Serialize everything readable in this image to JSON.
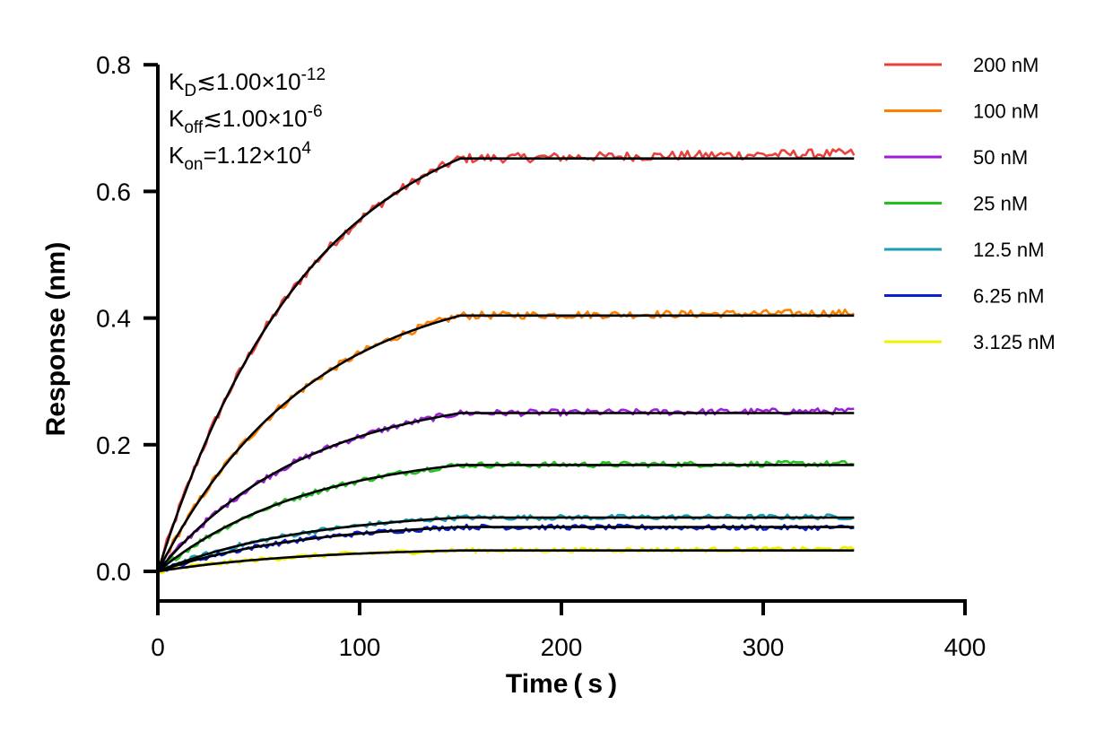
{
  "chart_data": {
    "type": "line",
    "xlabel": "Time ( s )",
    "ylabel": "Response (nm)",
    "xlim": [
      0,
      400
    ],
    "ylim": [
      -0.05,
      0.8
    ],
    "x_ticks": [
      "0",
      "100",
      "200",
      "300",
      "400"
    ],
    "y_ticks": [
      "0.0",
      "0.2",
      "0.4",
      "0.6",
      "0.8"
    ],
    "grid": false,
    "legend_position": "top-right",
    "association_end_time": 150,
    "end_time": 345,
    "annotations": [
      {
        "main": "K",
        "sub": "D",
        "rest": "≲1.00×10",
        "sup": "-12"
      },
      {
        "main": "K",
        "sub": "off",
        "rest": "≲1.00×10",
        "sup": "-6"
      },
      {
        "main": "K",
        "sub": "on",
        "rest": "=1.12×10",
        "sup": "4"
      }
    ],
    "series": [
      {
        "name": "200 nM",
        "color": "#e8423c",
        "plateau": 0.652,
        "final": 0.66
      },
      {
        "name": "100 nM",
        "color": "#ff8000",
        "plateau": 0.404,
        "final": 0.408
      },
      {
        "name": "50 nM",
        "color": "#9b1fd6",
        "plateau": 0.25,
        "final": 0.253
      },
      {
        "name": "25 nM",
        "color": "#22c21c",
        "plateau": 0.168,
        "final": 0.17
      },
      {
        "name": "12.5 nM",
        "color": "#1a9fb0",
        "plateau": 0.085,
        "final": 0.086
      },
      {
        "name": "6.25 nM",
        "color": "#0a1fcf",
        "plateau": 0.07,
        "final": 0.069
      },
      {
        "name": "3.125 nM",
        "color": "#f2f200",
        "plateau": 0.033,
        "final": 0.035
      }
    ],
    "fit_color": "#000000"
  }
}
